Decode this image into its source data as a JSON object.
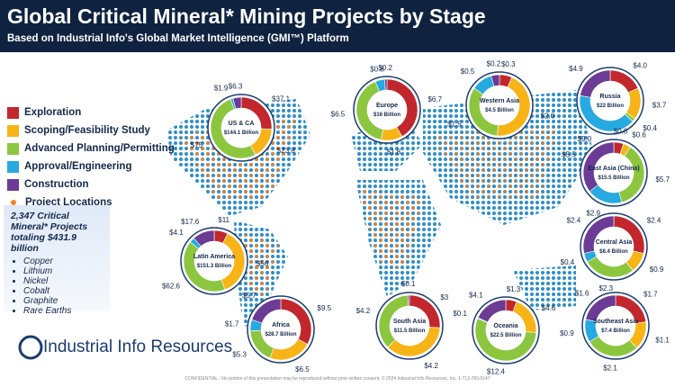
{
  "header": {
    "title": "Global Critical Mineral* Mining Projects by Stage",
    "subtitle": "Based on Industrial Info's Global Market Intelligence (GMI™) Platform"
  },
  "legend": [
    {
      "name": "Exploration",
      "color": "#c1272d"
    },
    {
      "name": "Scoping/Feasibility Study",
      "color": "#f6b417"
    },
    {
      "name": "Advanced Planning/Permitting",
      "color": "#8cc63f"
    },
    {
      "name": "Approval/Engineering",
      "color": "#27a9e1"
    },
    {
      "name": "Construction",
      "color": "#6b3b96"
    }
  ],
  "legend_extra": {
    "name": "Project Locations",
    "color": "#f0852d"
  },
  "summary": {
    "text": "2,347 Critical Mineral* Projects totaling $431.9 billion",
    "items": [
      "Copper",
      "Lithium",
      "Nickel",
      "Cobalt",
      "Graphite",
      "Rare Earths"
    ]
  },
  "logo": "Industrial Info Resources",
  "footer": "CONFIDENTIAL - No portion of this presentation may be reproduced without prior written consent. © 2024 Industrial Info Resources, Inc. 1-713-783-5147",
  "chart_data": [
    {
      "type": "pie",
      "title": "US & CA",
      "total_label": "$144.1 Billion",
      "values": [
        37.1,
        23.8,
        75,
        1.9,
        6.3
      ],
      "value_labels": [
        "$37.1",
        "$23.8",
        "$75",
        "$1.9",
        "$6.3"
      ]
    },
    {
      "type": "pie",
      "title": "Europe",
      "total_label": "$16 Billion",
      "values": [
        6.7,
        1.8,
        6.5,
        0.8,
        0.2
      ],
      "value_labels": [
        "$6.7",
        "$1.8",
        "$6.5",
        "$0.8",
        "$0.2"
      ]
    },
    {
      "type": "pie",
      "title": "Western Asia",
      "total_label": "$4.5 Billion",
      "values": [
        0.3,
        2.0,
        1.5,
        0.5,
        0.2
      ],
      "value_labels": [
        "$0.3",
        "$2.0",
        "$1.5",
        "$0.5",
        "$0.2"
      ]
    },
    {
      "type": "pie",
      "title": "Russia",
      "total_label": "$22 Billion",
      "values": [
        4.0,
        3.7,
        0.4,
        9.0,
        4.9
      ],
      "value_labels": [
        "$4.0",
        "$3.7",
        "$0.4",
        "$9.0",
        "$4.9"
      ]
    },
    {
      "type": "pie",
      "title": "East Asia (China)",
      "total_label": "$15.5 Billion",
      "values": [
        0.8,
        0.6,
        5.7,
        2.9,
        5.5
      ],
      "value_labels": [
        "$0.8",
        "$0.6",
        "$5.7",
        "$2.9",
        "$5.5"
      ]
    },
    {
      "type": "pie",
      "title": "Central Asia",
      "total_label": "$8.4 Billion",
      "values": [
        2.4,
        0.9,
        2.3,
        0.4,
        2.4
      ],
      "value_labels": [
        "$2.4",
        "$0.9",
        "$2.3",
        "$0.4",
        "$2.4"
      ]
    },
    {
      "type": "pie",
      "title": "Southeast Asia",
      "total_label": "$7.4 Billion",
      "values": [
        1.7,
        1.1,
        2.1,
        0.9,
        1.6
      ],
      "value_labels": [
        "$1.7",
        "$1.1",
        "$2.1",
        "$0.9",
        "$1.6"
      ]
    },
    {
      "type": "pie",
      "title": "Oceania",
      "total_label": "$22.5 Billion",
      "values": [
        1.3,
        4.6,
        12.4,
        0.1,
        4.1
      ],
      "value_labels": [
        "$1.3",
        "$4.6",
        "$12.4",
        "$0.1",
        "$4.1"
      ]
    },
    {
      "type": "pie",
      "title": "South Asia",
      "total_label": "$11.5 Billion",
      "values": [
        3,
        4.2,
        4.2,
        null,
        0.1
      ],
      "value_labels": [
        "$3",
        "$4.2",
        "$4.2",
        null,
        "$0.1"
      ]
    },
    {
      "type": "pie",
      "title": "Africa",
      "total_label": "$28.7 Billion",
      "values": [
        9.5,
        6.5,
        5.3,
        1.7,
        5.7
      ],
      "value_labels": [
        "$9.5",
        "$6.5",
        "$5.3",
        "$1.7",
        "$5.7"
      ]
    },
    {
      "type": "pie",
      "title": "Latin America",
      "total_label": "$151.3 Billion",
      "values": [
        11,
        56,
        62.6,
        4.1,
        17.6
      ],
      "value_labels": [
        "$11",
        "$56",
        "$62.6",
        "$4.1",
        "$17.6"
      ]
    }
  ]
}
